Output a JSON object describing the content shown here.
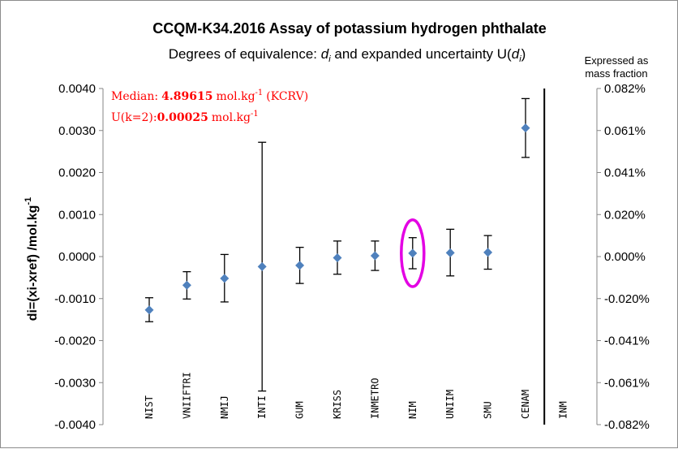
{
  "chart_data": {
    "type": "scatter",
    "title": "CCQM-K34.2016 Assay of potassium hydrogen phthalate",
    "subtitle": {
      "prefix": "Degrees of equivalence: ",
      "di_var": "d",
      "di_sub": "i",
      "mid": " and expanded uncertainty U(",
      "u_var": "d",
      "u_sub": "i",
      "suffix": ")"
    },
    "ylabel": {
      "base": "di=(xi-xref) /mol.kg",
      "sup": "-1"
    },
    "ylim": [
      -0.004,
      0.004
    ],
    "yticks": [
      "0.0040",
      "0.0030",
      "0.0020",
      "0.0010",
      "0.0000",
      "-0.0010",
      "-0.0020",
      "-0.0030",
      "-0.0040"
    ],
    "secondary_axis_label": [
      "Expressed as",
      "mass fraction"
    ],
    "secondary_yticks": [
      "0.082%",
      "0.061%",
      "0.041%",
      "0.020%",
      "0.000%",
      "-0.020%",
      "-0.041%",
      "-0.061%",
      "-0.082%"
    ],
    "grid": false,
    "marker_color": "#4f81bd",
    "errorbar_color": "#000000",
    "highlight_color": "#e300e3",
    "annotation_color": "#ff0000",
    "annotations": {
      "median_label": "Median:",
      "median_value": "4.89615",
      "median_unit": "mol.kg",
      "median_sup": "-1",
      "median_suffix": "(KCRV)",
      "u_label": "U(k=2):",
      "u_value": "0.00025",
      "u_unit": "mol.kg",
      "u_sup": "-1"
    },
    "categories": [
      "NIST",
      "VNIIFTRI",
      "NMIJ",
      "INTI",
      "GUM",
      "KRISS",
      "INMETRO",
      "NIM",
      "UNIIM",
      "SMU",
      "CENAM",
      "INM"
    ],
    "points": [
      {
        "label": "NIST",
        "value": -0.00127,
        "lower": -0.00155,
        "upper": -0.00098
      },
      {
        "label": "VNIIFTRI",
        "value": -0.00068,
        "lower": -0.00101,
        "upper": -0.00036
      },
      {
        "label": "NMIJ",
        "value": -0.00052,
        "lower": -0.00108,
        "upper": 5e-05
      },
      {
        "label": "INTI",
        "value": -0.00024,
        "lower": -0.0032,
        "upper": 0.00272
      },
      {
        "label": "GUM",
        "value": -0.00021,
        "lower": -0.00064,
        "upper": 0.00022
      },
      {
        "label": "KRISS",
        "value": -3e-05,
        "lower": -0.00042,
        "upper": 0.00037
      },
      {
        "label": "INMETRO",
        "value": 2e-05,
        "lower": -0.00033,
        "upper": 0.00037
      },
      {
        "label": "NIM",
        "value": 8e-05,
        "lower": -0.00029,
        "upper": 0.00045
      },
      {
        "label": "UNIIM",
        "value": 9e-05,
        "lower": -0.00046,
        "upper": 0.00065
      },
      {
        "label": "SMU",
        "value": 0.0001,
        "lower": -0.0003,
        "upper": 0.0005
      },
      {
        "label": "CENAM",
        "value": 0.00306,
        "lower": 0.00236,
        "upper": 0.00376
      }
    ],
    "highlighted": "NIM",
    "divider_after": "CENAM"
  }
}
